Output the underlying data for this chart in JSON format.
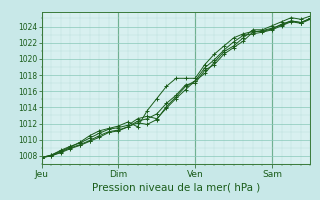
{
  "title": "",
  "xlabel": "Pression niveau de la mer( hPa )",
  "bg_color": "#c8e8e8",
  "plot_bg_color": "#d8f0f0",
  "grid_color_major": "#88c8b8",
  "grid_color_minor": "#b8ddd8",
  "line_color": "#1a5c1a",
  "spine_color": "#3a7a3a",
  "tick_color": "#1a5c1a",
  "ylim": [
    1007.0,
    1025.8
  ],
  "yticks": [
    1008,
    1010,
    1012,
    1014,
    1016,
    1018,
    1020,
    1022,
    1024
  ],
  "xtick_labels": [
    "Jeu",
    "Dim",
    "Ven",
    "Sam"
  ],
  "xtick_positions": [
    0,
    48,
    96,
    144
  ],
  "total_hours": 168,
  "xlabel_fontsize": 7.5,
  "ytick_fontsize": 5.5,
  "xtick_fontsize": 6.5,
  "series": [
    {
      "x": [
        0,
        6,
        12,
        18,
        24,
        30,
        36,
        42,
        48,
        54,
        60,
        66,
        72,
        78,
        84,
        90,
        96,
        102,
        108,
        114,
        120,
        126,
        132,
        138,
        144,
        150,
        156,
        162,
        168
      ],
      "y": [
        1007.8,
        1008.0,
        1008.5,
        1009.0,
        1009.4,
        1009.9,
        1010.5,
        1011.0,
        1011.2,
        1011.6,
        1012.3,
        1012.6,
        1013.2,
        1014.5,
        1015.5,
        1016.8,
        1017.0,
        1018.6,
        1019.3,
        1020.6,
        1021.4,
        1022.2,
        1023.3,
        1023.5,
        1023.8,
        1024.2,
        1024.7,
        1024.5,
        1025.0
      ]
    },
    {
      "x": [
        0,
        6,
        12,
        18,
        24,
        30,
        36,
        42,
        48,
        54,
        60,
        66,
        72,
        78,
        84,
        90,
        96,
        102,
        108,
        114,
        120,
        126,
        132,
        138,
        144,
        150,
        156,
        162,
        168
      ],
      "y": [
        1007.8,
        1008.1,
        1008.7,
        1009.2,
        1009.6,
        1010.2,
        1010.8,
        1011.3,
        1011.5,
        1011.8,
        1012.6,
        1012.9,
        1012.6,
        1013.9,
        1015.1,
        1016.2,
        1017.3,
        1018.2,
        1019.6,
        1020.9,
        1021.6,
        1022.6,
        1023.6,
        1023.6,
        1024.1,
        1024.6,
        1025.1,
        1024.9,
        1025.3
      ]
    },
    {
      "x": [
        0,
        6,
        12,
        18,
        24,
        30,
        36,
        42,
        48,
        54,
        60,
        66,
        72,
        78,
        84,
        90,
        96,
        102,
        108,
        114,
        120,
        126,
        132,
        138,
        144,
        150,
        156,
        162,
        168
      ],
      "y": [
        1007.8,
        1008.0,
        1008.4,
        1008.9,
        1009.3,
        1009.8,
        1010.3,
        1010.9,
        1011.1,
        1011.6,
        1012.1,
        1011.9,
        1012.5,
        1014.1,
        1015.3,
        1016.6,
        1017.3,
        1018.9,
        1019.9,
        1021.1,
        1022.1,
        1022.9,
        1023.1,
        1023.3,
        1023.6,
        1024.1,
        1024.6,
        1024.4,
        1024.9
      ]
    },
    {
      "x": [
        0,
        6,
        12,
        18,
        24,
        30,
        36,
        42,
        48,
        54,
        60,
        66,
        72,
        78,
        84,
        90,
        96,
        102,
        108,
        114,
        120,
        126,
        132,
        138,
        144,
        150,
        156,
        162,
        168
      ],
      "y": [
        1007.8,
        1008.1,
        1008.6,
        1009.1,
        1009.7,
        1010.5,
        1011.1,
        1011.4,
        1011.7,
        1012.2,
        1011.6,
        1013.6,
        1015.1,
        1016.6,
        1017.6,
        1017.6,
        1017.6,
        1019.3,
        1020.6,
        1021.6,
        1022.6,
        1023.1,
        1023.4,
        1023.4,
        1023.7,
        1024.3,
        1024.7,
        1024.5,
        1025.0
      ]
    }
  ]
}
